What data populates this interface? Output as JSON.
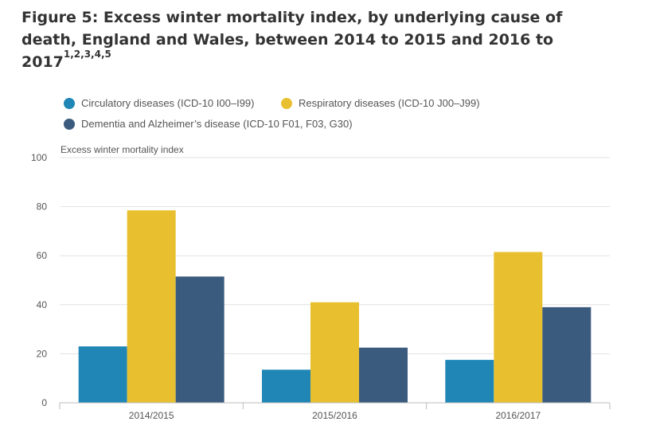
{
  "title": {
    "text": "Figure 5: Excess winter mortality index, by underlying cause of death, England and Wales, between 2014 to 2015 and 2016 to 2017",
    "superscript": "1,2,3,4,5"
  },
  "chart_data": {
    "type": "bar",
    "title": "Figure 5: Excess winter mortality index, by underlying cause of death, England and Wales, between 2014 to 2015 and 2016 to 2017",
    "xlabel": "",
    "ylabel": "Excess winter mortality index",
    "ylim": [
      0,
      100
    ],
    "yticks": [
      "0",
      "20",
      "40",
      "60",
      "80",
      "100"
    ],
    "categories": [
      "2014/2015",
      "2015/2016",
      "2016/2017"
    ],
    "grid": true,
    "legend_position": "top",
    "series": [
      {
        "name": "Circulatory diseases (ICD-10 I00–I99)",
        "color": "#1f86b6",
        "values": [
          23,
          13.5,
          17.5
        ]
      },
      {
        "name": "Respiratory diseases (ICD-10 J00–J99)",
        "color": "#e8c02f",
        "values": [
          78.5,
          41,
          61.5
        ]
      },
      {
        "name": "Dementia and Alzheimer’s disease (ICD-10 F01, F03, G30)",
        "color": "#3b5b7e",
        "values": [
          51.5,
          22.5,
          39
        ]
      }
    ]
  }
}
